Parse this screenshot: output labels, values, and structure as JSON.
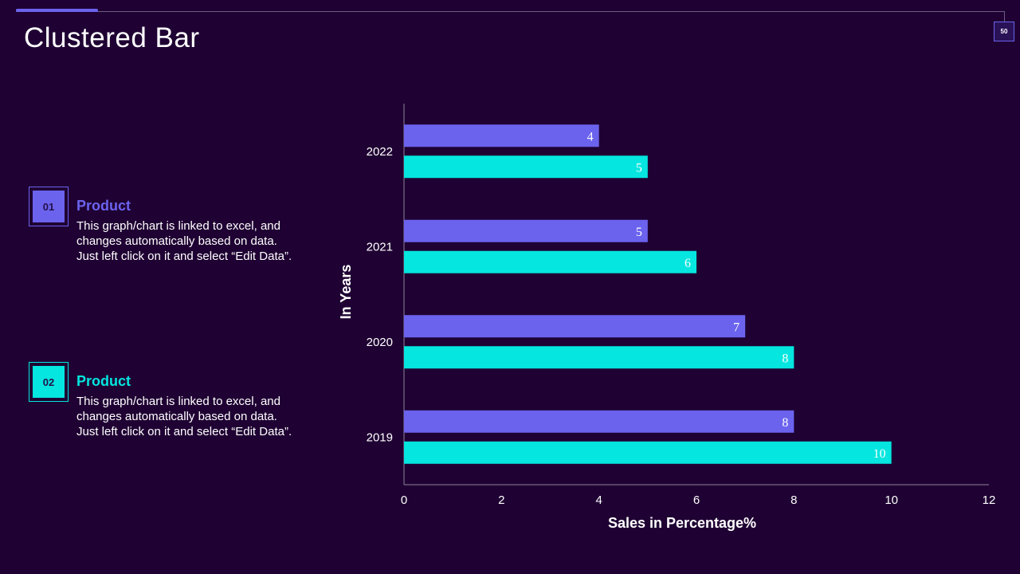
{
  "page": {
    "title": "Clustered Bar",
    "page_number": "50"
  },
  "items": [
    {
      "number": "01",
      "heading": "Product",
      "lines": [
        "This graph/chart is linked to excel, and",
        "changes automatically based on data.",
        "Just left click on it and select “Edit Data”."
      ],
      "color": "#6b63ee"
    },
    {
      "number": "02",
      "heading": "Product",
      "lines": [
        "This graph/chart is linked to excel, and",
        "changes automatically based on data.",
        "Just left click on it and select “Edit Data”."
      ],
      "color": "#04e6df"
    }
  ],
  "chart_data": {
    "type": "bar",
    "orientation": "horizontal",
    "categories": [
      "2019",
      "2020",
      "2021",
      "2022"
    ],
    "series": [
      {
        "name": "Product 01",
        "values": [
          8,
          7,
          5,
          4
        ],
        "color": "#6b63ee"
      },
      {
        "name": "Product 02",
        "values": [
          10,
          8,
          6,
          5
        ],
        "color": "#04e6df"
      }
    ],
    "xlabel": "Sales in Percentage%",
    "ylabel": "In Years",
    "xlim": [
      0,
      12
    ],
    "xticks": [
      "0",
      "2",
      "4",
      "6",
      "8",
      "10",
      "12"
    ],
    "grid": false,
    "data_labels": true
  }
}
